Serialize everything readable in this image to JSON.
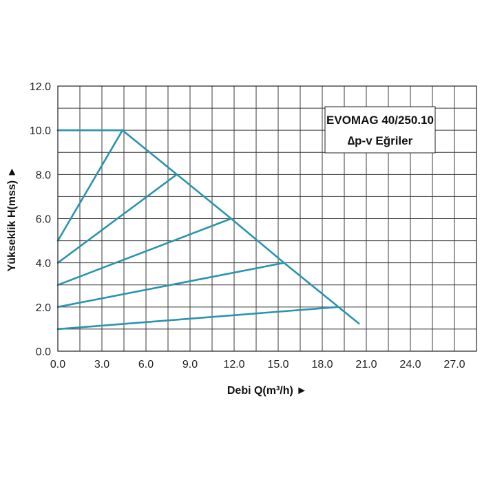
{
  "chart_data": {
    "type": "line",
    "title": "EVOMAG 40/250.10",
    "subtitle": "∆p-v Eğriler",
    "xlabel": "Debi Q(m³/h) ►",
    "ylabel": "Yükseklik H(mss) ►",
    "xlim": [
      0,
      28.5
    ],
    "ylim": [
      0,
      12
    ],
    "x_ticks": [
      "0.0",
      "3.0",
      "6.0",
      "9.0",
      "12.0",
      "15.0",
      "18.0",
      "21.0",
      "24.0",
      "27.0"
    ],
    "y_ticks": [
      "0.0",
      "2.0",
      "4.0",
      "6.0",
      "8.0",
      "10.0",
      "12.0"
    ],
    "x_tick_values": [
      0,
      3,
      6,
      9,
      12,
      15,
      18,
      21,
      24,
      27
    ],
    "y_tick_values": [
      0,
      2,
      4,
      6,
      8,
      10,
      12
    ],
    "grid": true,
    "legend_position": "top-right",
    "line_color": "#2a93ae",
    "series": [
      {
        "x": [
          0,
          4.4
        ],
        "y": [
          10.0,
          10.0
        ]
      },
      {
        "x": [
          4.4,
          8.1,
          11.8,
          15.4,
          19.1,
          20.5
        ],
        "y": [
          10.0,
          8.0,
          6.0,
          4.0,
          2.0,
          1.25
        ]
      },
      {
        "x": [
          0,
          4.4
        ],
        "y": [
          5.0,
          10.0
        ]
      },
      {
        "x": [
          0,
          8.1
        ],
        "y": [
          4.0,
          8.0
        ]
      },
      {
        "x": [
          0,
          11.8
        ],
        "y": [
          3.0,
          6.0
        ]
      },
      {
        "x": [
          0,
          15.4
        ],
        "y": [
          2.0,
          4.0
        ]
      },
      {
        "x": [
          0,
          19.1
        ],
        "y": [
          1.0,
          2.0
        ]
      }
    ]
  }
}
